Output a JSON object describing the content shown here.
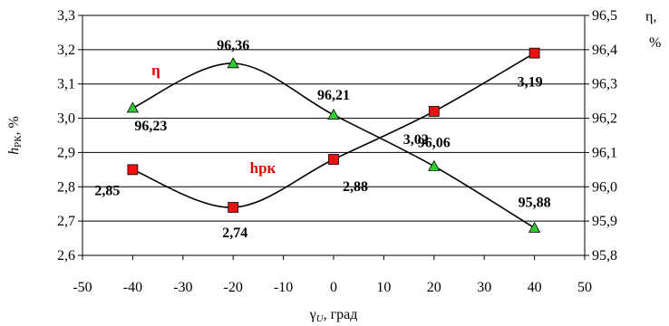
{
  "chart_data": {
    "type": "line",
    "x": [
      -40,
      -20,
      0,
      20,
      40
    ],
    "xlim": [
      -50,
      50
    ],
    "xticks": [
      "-50",
      "-40",
      "-30",
      "-20",
      "-10",
      "0",
      "10",
      "20",
      "30",
      "40",
      "50"
    ],
    "xlabel": {
      "base": "γ",
      "sub": "U",
      "suffix": ", град"
    },
    "ylabel_left": {
      "base": "h",
      "sub": "РК",
      "suffix": ", %"
    },
    "ylabel_right": {
      "line1": "η,",
      "line2": "%"
    },
    "ylim_left": [
      2.6,
      3.3
    ],
    "ylim_right": [
      95.8,
      96.5
    ],
    "yticks_left": [
      "2,6",
      "2,7",
      "2,8",
      "2,9",
      "3,0",
      "3,1",
      "3,2",
      "3,3"
    ],
    "yticks_right": [
      "95,8",
      "95,9",
      "96,0",
      "96,1",
      "96,2",
      "96,3",
      "96,4",
      "96,5"
    ],
    "grid": "horizontal",
    "series": [
      {
        "name": "η",
        "axis": "right",
        "values": [
          96.23,
          96.36,
          96.21,
          96.06,
          95.88
        ],
        "labels": [
          "96,23",
          "96,36",
          "96,21",
          "96,06",
          "95,88"
        ],
        "marker": "triangle",
        "color": "#33cc33"
      },
      {
        "name": "hрк",
        "axis": "left",
        "values": [
          2.85,
          2.74,
          2.88,
          3.02,
          3.19
        ],
        "labels": [
          "2,85",
          "2,74",
          "2,88",
          "3,02",
          "3,19"
        ],
        "marker": "square",
        "color": "#ee1111"
      }
    ]
  }
}
